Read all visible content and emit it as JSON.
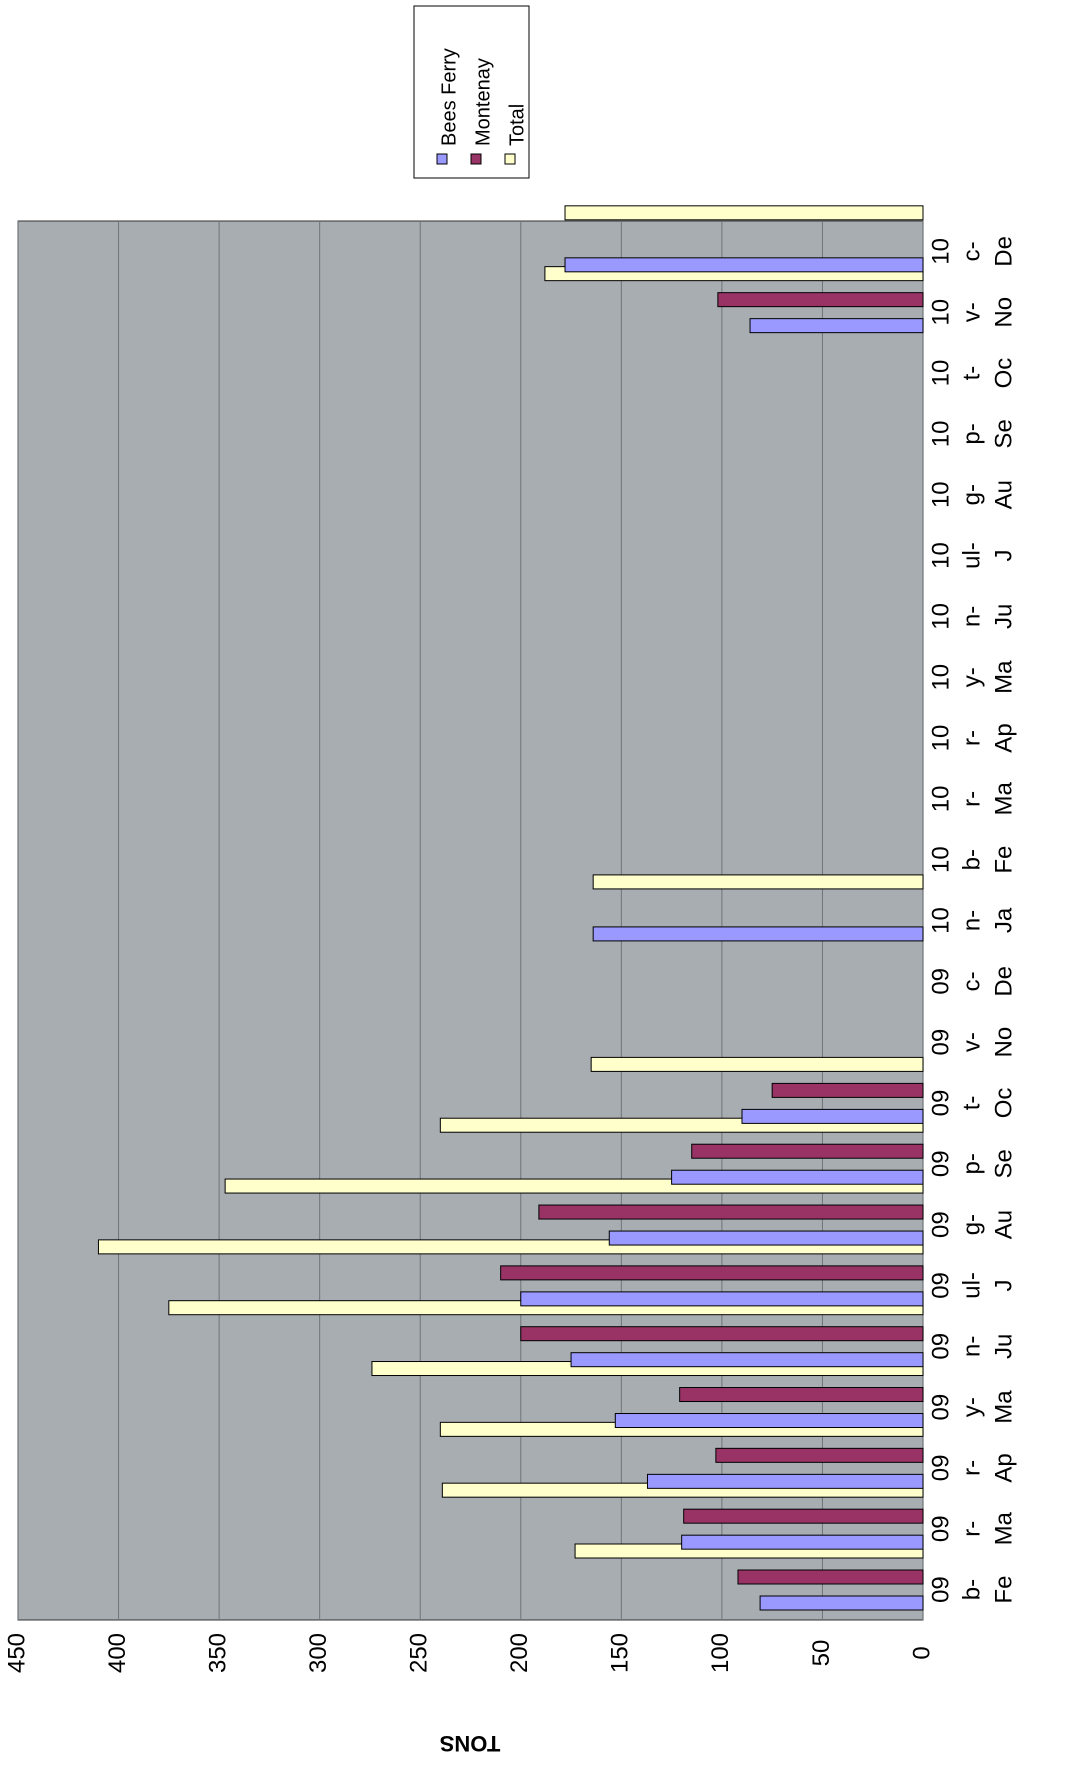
{
  "chart_data": {
    "type": "bar",
    "title": "",
    "xlabel": "",
    "ylabel": "TONS",
    "ylim": [
      0,
      450
    ],
    "yticks": [
      0,
      50,
      100,
      150,
      200,
      250,
      300,
      350,
      400,
      450
    ],
    "grid": true,
    "legend_position": "top-right",
    "categories": [
      "Feb-09",
      "Mar-09",
      "Apr-09",
      "May-09",
      "Jun-09",
      "Jul-09",
      "Aug-09",
      "Sep-09",
      "Oct-09",
      "Nov-09",
      "Dec-09",
      "Jan-10",
      "Feb-10",
      "Mar-10",
      "Apr-10",
      "May-10",
      "Jun-10",
      "Jul-10",
      "Aug-10",
      "Sep-10",
      "Oct-10",
      "Nov-10",
      "Dec-10"
    ],
    "category_label_lines": [
      [
        "Fe",
        "b-",
        "09"
      ],
      [
        "Ma",
        "r-",
        "09"
      ],
      [
        "Ap",
        "r-",
        "09"
      ],
      [
        "Ma",
        "y-",
        "09"
      ],
      [
        "Ju",
        "n-",
        "09"
      ],
      [
        "J",
        "ul-",
        "09"
      ],
      [
        "Au",
        "g-",
        "09"
      ],
      [
        "Se",
        "p-",
        "09"
      ],
      [
        "Oc",
        "t-",
        "09"
      ],
      [
        "No",
        "v-",
        "09"
      ],
      [
        "De",
        "c-",
        "09"
      ],
      [
        "Ja",
        "n-",
        "10"
      ],
      [
        "Fe",
        "b-",
        "10"
      ],
      [
        "Ma",
        "r-",
        "10"
      ],
      [
        "Ap",
        "r-",
        "10"
      ],
      [
        "Ma",
        "y-",
        "10"
      ],
      [
        "Ju",
        "n-",
        "10"
      ],
      [
        "J",
        "ul-",
        "10"
      ],
      [
        "Au",
        "g-",
        "10"
      ],
      [
        "Se",
        "p-",
        "10"
      ],
      [
        "Oc",
        "t-",
        "10"
      ],
      [
        "No",
        "v-",
        "10"
      ],
      [
        "De",
        "c-",
        "10"
      ]
    ],
    "series": [
      {
        "name": "Bees Ferry",
        "color": "#9999ff",
        "values": [
          81,
          120,
          137,
          153,
          175,
          200,
          156,
          125,
          90,
          0,
          0,
          164,
          0,
          0,
          0,
          0,
          0,
          0,
          0,
          0,
          0,
          86,
          178
        ]
      },
      {
        "name": "Montenay",
        "color": "#993366",
        "values": [
          92,
          119,
          103,
          121,
          200,
          210,
          191,
          115,
          75,
          0,
          0,
          0,
          0,
          0,
          0,
          0,
          0,
          0,
          0,
          0,
          0,
          102,
          0
        ]
      },
      {
        "name": "Total",
        "color": "#ffffcc",
        "values": [
          173,
          239,
          240,
          274,
          375,
          410,
          347,
          240,
          165,
          0,
          0,
          164,
          0,
          0,
          0,
          0,
          0,
          0,
          0,
          0,
          0,
          188,
          178
        ]
      }
    ]
  }
}
